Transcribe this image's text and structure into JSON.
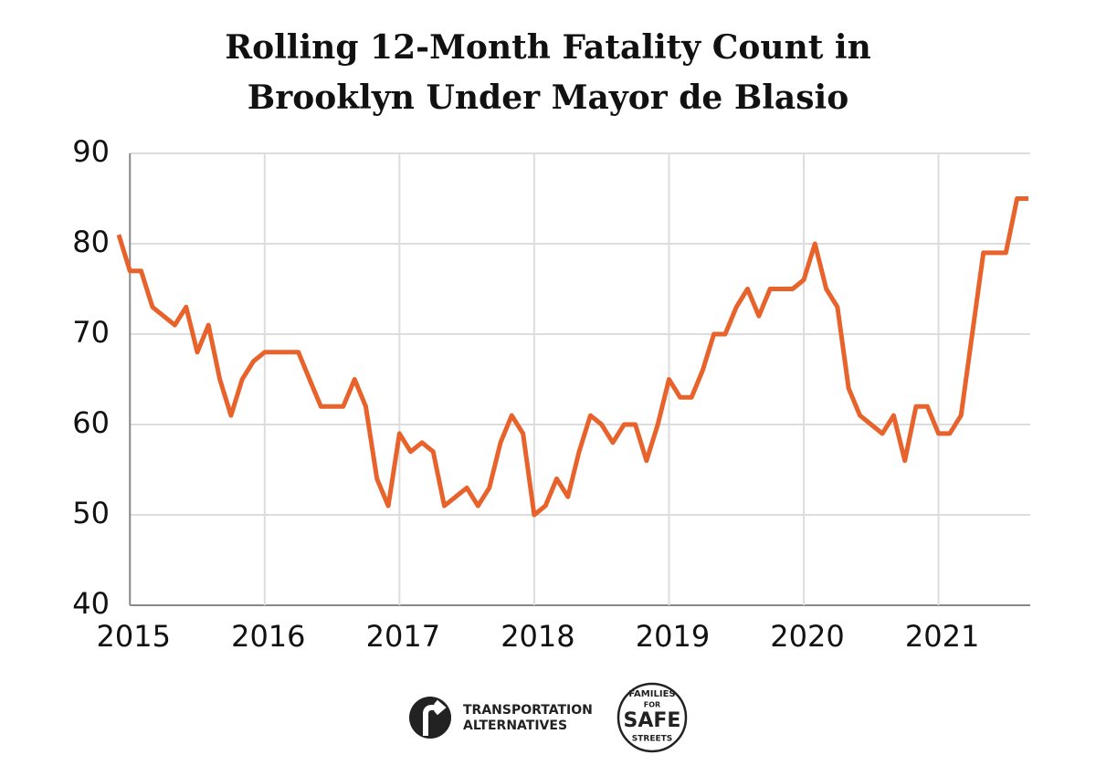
{
  "chart_data": {
    "type": "line",
    "title": [
      "Rolling 12-Month Fatality Count in",
      "Brooklyn Under Mayor de Blasio"
    ],
    "x": [
      2014.917,
      2015,
      2015.083,
      2015.167,
      2015.25,
      2015.333,
      2015.417,
      2015.5,
      2015.583,
      2015.667,
      2015.75,
      2015.833,
      2015.917,
      2016,
      2016.083,
      2016.167,
      2016.25,
      2016.333,
      2016.417,
      2016.5,
      2016.583,
      2016.667,
      2016.75,
      2016.833,
      2016.917,
      2017,
      2017.083,
      2017.167,
      2017.25,
      2017.333,
      2017.417,
      2017.5,
      2017.583,
      2017.667,
      2017.75,
      2017.833,
      2017.917,
      2018,
      2018.083,
      2018.167,
      2018.25,
      2018.333,
      2018.417,
      2018.5,
      2018.583,
      2018.667,
      2018.75,
      2018.833,
      2018.917,
      2019,
      2019.083,
      2019.167,
      2019.25,
      2019.333,
      2019.417,
      2019.5,
      2019.583,
      2019.667,
      2019.75,
      2019.833,
      2019.917,
      2020,
      2020.083,
      2020.167,
      2020.25,
      2020.333,
      2020.417,
      2020.5,
      2020.583,
      2020.667,
      2020.75,
      2020.833,
      2020.917,
      2021,
      2021.083,
      2021.167,
      2021.25,
      2021.333,
      2021.417,
      2021.5,
      2021.583,
      2021.667
    ],
    "values": [
      81,
      77,
      77,
      73,
      72,
      71,
      73,
      68,
      71,
      65,
      61,
      65,
      67,
      68,
      68,
      68,
      68,
      65,
      62,
      62,
      62,
      65,
      62,
      54,
      51,
      59,
      57,
      58,
      57,
      51,
      52,
      53,
      51,
      53,
      58,
      61,
      59,
      50,
      51,
      54,
      52,
      57,
      61,
      60,
      58,
      60,
      60,
      56,
      60,
      65,
      63,
      63,
      66,
      70,
      70,
      73,
      75,
      72,
      75,
      75,
      75,
      76,
      80,
      75,
      73,
      64,
      61,
      60,
      59,
      61,
      56,
      62,
      62,
      59,
      59,
      61,
      70,
      79,
      79,
      79,
      85,
      85
    ],
    "color": "#e8622c",
    "xlim": [
      2014.917,
      2021.667
    ],
    "xticks": [
      2015,
      2016,
      2017,
      2018,
      2019,
      2020,
      2021
    ],
    "ylim": [
      40,
      90
    ],
    "yticks": [
      40,
      50,
      60,
      70,
      80,
      90
    ],
    "grid": true
  },
  "logos": {
    "transportation": [
      "TRANSPORTATION",
      "ALTERNATIVES"
    ],
    "families": {
      "top": "FAMILIES",
      "middle": "FOR",
      "main": "SAFE",
      "bottom": "STREETS"
    }
  }
}
